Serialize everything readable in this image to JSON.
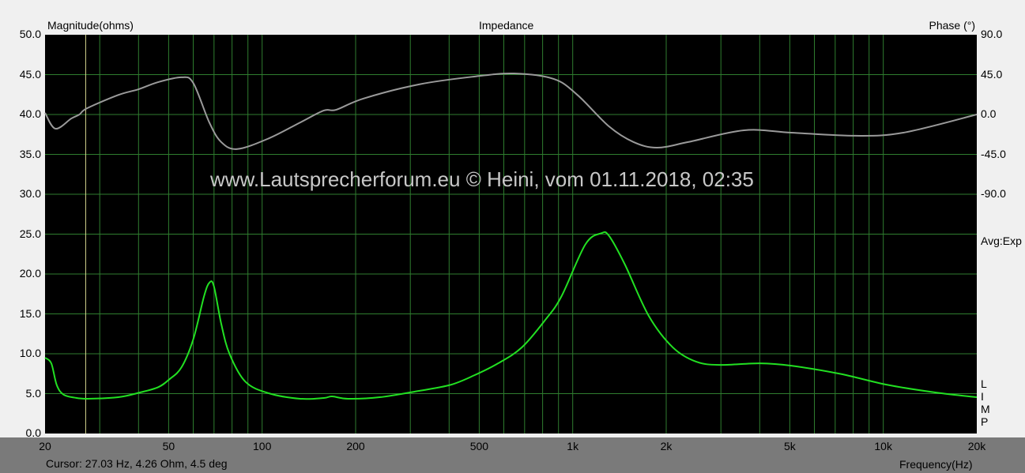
{
  "chart_data": {
    "type": "line",
    "title": "Impedance",
    "ylabel": "Magnitude(ohms)",
    "y2label": "Phase (°)",
    "xlabel": "Frequency(Hz)",
    "xscale": "log",
    "xlim": [
      20,
      20000
    ],
    "ylim": [
      0,
      50
    ],
    "y2lim": [
      -180,
      90
    ],
    "grid": true,
    "x_ticks": [
      "20",
      "50",
      "100",
      "200",
      "500",
      "1k",
      "2k",
      "5k",
      "10k",
      "20k"
    ],
    "x_tick_values": [
      20,
      50,
      100,
      200,
      500,
      1000,
      2000,
      5000,
      10000,
      20000
    ],
    "y_ticks": [
      "50.0",
      "45.0",
      "40.0",
      "35.0",
      "30.0",
      "25.0",
      "20.0",
      "15.0",
      "10.0",
      "5.0",
      "0.0"
    ],
    "y2_ticks": [
      "90.0",
      "45.0",
      "0.0",
      "-45.0",
      "-90.0"
    ],
    "y2_tick_values": [
      90,
      45,
      0,
      -45,
      -90
    ],
    "cursor_hz": 27.03,
    "colors": {
      "background": "#000000",
      "grid": "#2f7d2f",
      "magnitude": "#22e022",
      "phase": "#9a9a9a",
      "cursor": "#d8d890"
    },
    "series": [
      {
        "key": "magnitude",
        "axis": "left",
        "points": [
          [
            20,
            9.5
          ],
          [
            20.95,
            8.8
          ],
          [
            21.8,
            6.1
          ],
          [
            22.9,
            4.9
          ],
          [
            24.9,
            4.5
          ],
          [
            27.3,
            4.36
          ],
          [
            34.4,
            4.55
          ],
          [
            40,
            5.1
          ],
          [
            46.2,
            5.8
          ],
          [
            50.3,
            6.8
          ],
          [
            55,
            8.3
          ],
          [
            60,
            11.8
          ],
          [
            65,
            17.2
          ],
          [
            67.6,
            18.9
          ],
          [
            69.9,
            18.5
          ],
          [
            73.8,
            13.8
          ],
          [
            78.5,
            10
          ],
          [
            88.3,
            6.5
          ],
          [
            105,
            5.05
          ],
          [
            132.6,
            4.36
          ],
          [
            158,
            4.46
          ],
          [
            168,
            4.65
          ],
          [
            189,
            4.36
          ],
          [
            239,
            4.55
          ],
          [
            320,
            5.35
          ],
          [
            404,
            6.1
          ],
          [
            482,
            7.3
          ],
          [
            575,
            8.8
          ],
          [
            686,
            10.8
          ],
          [
            818,
            14.3
          ],
          [
            920,
            17.2
          ],
          [
            1098,
            23.7
          ],
          [
            1234,
            25.1
          ],
          [
            1308,
            24.8
          ],
          [
            1472,
            21.2
          ],
          [
            1757,
            14.75
          ],
          [
            2100,
            10.8
          ],
          [
            2500,
            9.0
          ],
          [
            2990,
            8.6
          ],
          [
            4000,
            8.8
          ],
          [
            5055,
            8.5
          ],
          [
            7225,
            7.5
          ],
          [
            10320,
            6.1
          ],
          [
            14700,
            5.15
          ],
          [
            20000,
            4.55
          ]
        ]
      },
      {
        "key": "phase",
        "axis": "right",
        "points": [
          [
            20,
            1.8
          ],
          [
            21.6,
            -16
          ],
          [
            24.3,
            -4.5
          ],
          [
            25.8,
            0
          ],
          [
            27.3,
            7
          ],
          [
            34.4,
            22
          ],
          [
            40,
            28.5
          ],
          [
            46.2,
            36.5
          ],
          [
            55,
            42
          ],
          [
            60,
            35.6
          ],
          [
            67.6,
            -9
          ],
          [
            73.8,
            -31
          ],
          [
            83.1,
            -39
          ],
          [
            105,
            -27
          ],
          [
            132.6,
            -9
          ],
          [
            158,
            4.5
          ],
          [
            173,
            5.3
          ],
          [
            212,
            18
          ],
          [
            320,
            34
          ],
          [
            482,
            42.8
          ],
          [
            647,
            46.3
          ],
          [
            870,
            40
          ],
          [
            1036,
            22
          ],
          [
            1308,
            -13.4
          ],
          [
            1568,
            -31
          ],
          [
            1868,
            -37.4
          ],
          [
            2360,
            -31
          ],
          [
            3560,
            -17.8
          ],
          [
            5055,
            -20.5
          ],
          [
            8100,
            -24
          ],
          [
            11600,
            -20.5
          ],
          [
            20000,
            0
          ]
        ]
      }
    ]
  },
  "labels": {
    "avg": "Avg:Exp",
    "limp": [
      "L",
      "I",
      "M",
      "P"
    ],
    "cursor_readout": "Cursor: 27.03 Hz, 4.26 Ohm, 4.5 deg",
    "watermark": "www.Lautsprecherforum.eu © Heini, vom 01.11.2018, 02:35"
  }
}
